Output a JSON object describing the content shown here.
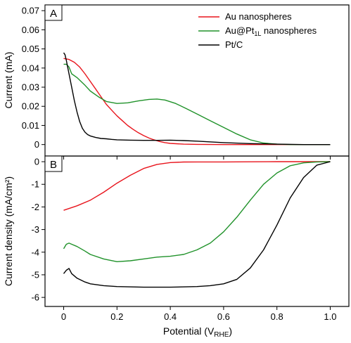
{
  "chart_data": {
    "type": "line",
    "x_label": {
      "main": "Potential (V",
      "sub": "RHE",
      "close": ")"
    },
    "x_ticks": [
      "0",
      "0.2",
      "0.4",
      "0.6",
      "0.8",
      "1.0"
    ],
    "x_tick_values": [
      0,
      0.2,
      0.4,
      0.6,
      0.8,
      1.0
    ],
    "xlim": [
      -0.07,
      1.07
    ],
    "grid": false,
    "colors": {
      "au": "#e8141c",
      "aupt": "#20922a",
      "ptc": "#000000"
    },
    "panels": [
      {
        "letter": "A",
        "ylabel": "Current (mA)",
        "ylim": [
          -0.006,
          0.073
        ],
        "y_ticks": [
          "0",
          "0.01",
          "0.02",
          "0.03",
          "0.04",
          "0.05",
          "0.06",
          "0.07"
        ],
        "y_tick_values": [
          0,
          0.01,
          0.02,
          0.03,
          0.04,
          0.05,
          0.06,
          0.07
        ],
        "legend_position": "top-right",
        "legend": [
          {
            "key": "au",
            "label": "Au nanospheres"
          },
          {
            "key": "aupt",
            "label_main": "Au@Pt",
            "label_sub": "1L",
            "label_tail": " nanospheres"
          },
          {
            "key": "ptc",
            "label": "Pt/C"
          }
        ],
        "series": [
          {
            "key": "au",
            "x": [
              0,
              0.02,
              0.04,
              0.06,
              0.08,
              0.1,
              0.12,
              0.14,
              0.16,
              0.18,
              0.2,
              0.22,
              0.24,
              0.26,
              0.28,
              0.3,
              0.32,
              0.34,
              0.36,
              0.38,
              0.4,
              0.45,
              0.5,
              0.6,
              0.7,
              0.8,
              1.0
            ],
            "y": [
              0.045,
              0.0445,
              0.043,
              0.0405,
              0.037,
              0.033,
              0.029,
              0.025,
              0.021,
              0.018,
              0.015,
              0.0125,
              0.01,
              0.008,
              0.0062,
              0.0047,
              0.0034,
              0.0024,
              0.0016,
              0.001,
              0.0006,
              0.0002,
              0.0001,
              0.0,
              0.0,
              0.0,
              0.0
            ]
          },
          {
            "key": "aupt",
            "x": [
              0,
              0.01,
              0.02,
              0.03,
              0.05,
              0.08,
              0.1,
              0.13,
              0.16,
              0.2,
              0.24,
              0.28,
              0.32,
              0.35,
              0.38,
              0.42,
              0.46,
              0.5,
              0.55,
              0.6,
              0.65,
              0.7,
              0.75,
              0.8,
              0.85,
              0.9,
              1.0
            ],
            "y": [
              0.042,
              0.042,
              0.0405,
              0.037,
              0.035,
              0.031,
              0.028,
              0.025,
              0.0225,
              0.0215,
              0.0218,
              0.0228,
              0.0236,
              0.0238,
              0.0233,
              0.0215,
              0.0188,
              0.016,
              0.0125,
              0.009,
              0.0055,
              0.0025,
              0.0008,
              0.0002,
              0.0,
              0.0,
              0.0
            ]
          },
          {
            "key": "ptc",
            "x": [
              0,
              0.005,
              0.01,
              0.02,
              0.03,
              0.04,
              0.05,
              0.06,
              0.07,
              0.08,
              0.09,
              0.1,
              0.12,
              0.14,
              0.16,
              0.18,
              0.2,
              0.25,
              0.3,
              0.35,
              0.4,
              0.45,
              0.5,
              0.6,
              0.7,
              0.8,
              0.9,
              1.0
            ],
            "y": [
              0.048,
              0.047,
              0.044,
              0.037,
              0.03,
              0.023,
              0.017,
              0.012,
              0.0085,
              0.0065,
              0.0052,
              0.0045,
              0.0037,
              0.0032,
              0.003,
              0.0027,
              0.0025,
              0.0023,
              0.0022,
              0.0022,
              0.0023,
              0.0021,
              0.0018,
              0.001,
              0.0005,
              0.0002,
              0.0,
              0.0
            ]
          }
        ]
      },
      {
        "letter": "B",
        "ylabel": "Current density (mA/cm²)",
        "ylim": [
          -6.4,
          0.25
        ],
        "y_ticks": [
          "0",
          "-1",
          "-2",
          "-3",
          "-4",
          "-5",
          "-6"
        ],
        "y_tick_values": [
          0,
          -1,
          -2,
          -3,
          -4,
          -5,
          -6
        ],
        "series": [
          {
            "key": "au",
            "x": [
              0,
              0.05,
              0.1,
              0.15,
              0.2,
              0.25,
              0.3,
              0.35,
              0.4,
              0.45,
              0.5,
              0.6,
              0.7,
              0.8,
              0.9,
              1.0
            ],
            "y": [
              -2.15,
              -1.95,
              -1.7,
              -1.35,
              -0.95,
              -0.6,
              -0.3,
              -0.12,
              -0.04,
              -0.015,
              -0.01,
              -0.01,
              -0.005,
              0.0,
              0.0,
              0.0
            ]
          },
          {
            "key": "aupt",
            "x": [
              0,
              0.01,
              0.02,
              0.03,
              0.05,
              0.08,
              0.1,
              0.15,
              0.2,
              0.25,
              0.3,
              0.35,
              0.4,
              0.45,
              0.5,
              0.55,
              0.6,
              0.65,
              0.7,
              0.75,
              0.8,
              0.85,
              0.9,
              0.95,
              1.0
            ],
            "y": [
              -3.85,
              -3.65,
              -3.6,
              -3.65,
              -3.75,
              -3.95,
              -4.1,
              -4.3,
              -4.42,
              -4.38,
              -4.3,
              -4.22,
              -4.18,
              -4.1,
              -3.9,
              -3.6,
              -3.1,
              -2.45,
              -1.7,
              -1.0,
              -0.5,
              -0.18,
              -0.05,
              -0.01,
              0.0
            ]
          },
          {
            "key": "ptc",
            "x": [
              0,
              0.01,
              0.02,
              0.03,
              0.05,
              0.08,
              0.1,
              0.15,
              0.2,
              0.3,
              0.4,
              0.5,
              0.55,
              0.6,
              0.65,
              0.7,
              0.75,
              0.8,
              0.85,
              0.9,
              0.95,
              1.0
            ],
            "y": [
              -4.95,
              -4.8,
              -4.72,
              -4.95,
              -5.15,
              -5.32,
              -5.4,
              -5.48,
              -5.52,
              -5.55,
              -5.55,
              -5.52,
              -5.48,
              -5.4,
              -5.2,
              -4.7,
              -3.9,
              -2.8,
              -1.6,
              -0.7,
              -0.15,
              0.0
            ]
          }
        ]
      }
    ]
  }
}
